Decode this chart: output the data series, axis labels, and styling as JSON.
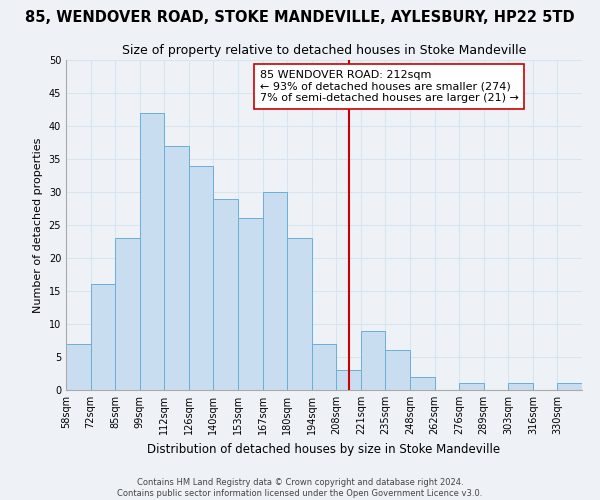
{
  "title": "85, WENDOVER ROAD, STOKE MANDEVILLE, AYLESBURY, HP22 5TD",
  "subtitle": "Size of property relative to detached houses in Stoke Mandeville",
  "xlabel": "Distribution of detached houses by size in Stoke Mandeville",
  "ylabel": "Number of detached properties",
  "footer_line1": "Contains HM Land Registry data © Crown copyright and database right 2024.",
  "footer_line2": "Contains public sector information licensed under the Open Government Licence v3.0.",
  "bin_labels": [
    "58sqm",
    "72sqm",
    "85sqm",
    "99sqm",
    "112sqm",
    "126sqm",
    "140sqm",
    "153sqm",
    "167sqm",
    "180sqm",
    "194sqm",
    "208sqm",
    "221sqm",
    "235sqm",
    "248sqm",
    "262sqm",
    "276sqm",
    "289sqm",
    "303sqm",
    "316sqm",
    "330sqm"
  ],
  "bin_edges": [
    0,
    1,
    2,
    3,
    4,
    5,
    6,
    7,
    8,
    9,
    10,
    11,
    12,
    13,
    14,
    15,
    16,
    17,
    18,
    19,
    20,
    21
  ],
  "bar_heights": [
    7,
    16,
    23,
    42,
    37,
    34,
    29,
    26,
    30,
    23,
    7,
    3,
    9,
    6,
    2,
    0,
    1,
    0,
    1,
    0,
    1
  ],
  "bar_color": "#c8ddef",
  "bar_edge_color": "#6aaed6",
  "property_line_x": 11.5,
  "property_line_color": "#cc0000",
  "annotation_line1": "85 WENDOVER ROAD: 212sqm",
  "annotation_line2": "← 93% of detached houses are smaller (274)",
  "annotation_line3": "7% of semi-detached houses are larger (21) →",
  "ylim": [
    0,
    50
  ],
  "yticks": [
    0,
    5,
    10,
    15,
    20,
    25,
    30,
    35,
    40,
    45,
    50
  ],
  "bg_color": "#eef2f7",
  "grid_color": "#d8e4ef",
  "title_fontsize": 10.5,
  "subtitle_fontsize": 9,
  "annotation_fontsize": 8,
  "ylabel_fontsize": 8,
  "xlabel_fontsize": 8.5,
  "footer_fontsize": 6,
  "tick_fontsize": 7
}
